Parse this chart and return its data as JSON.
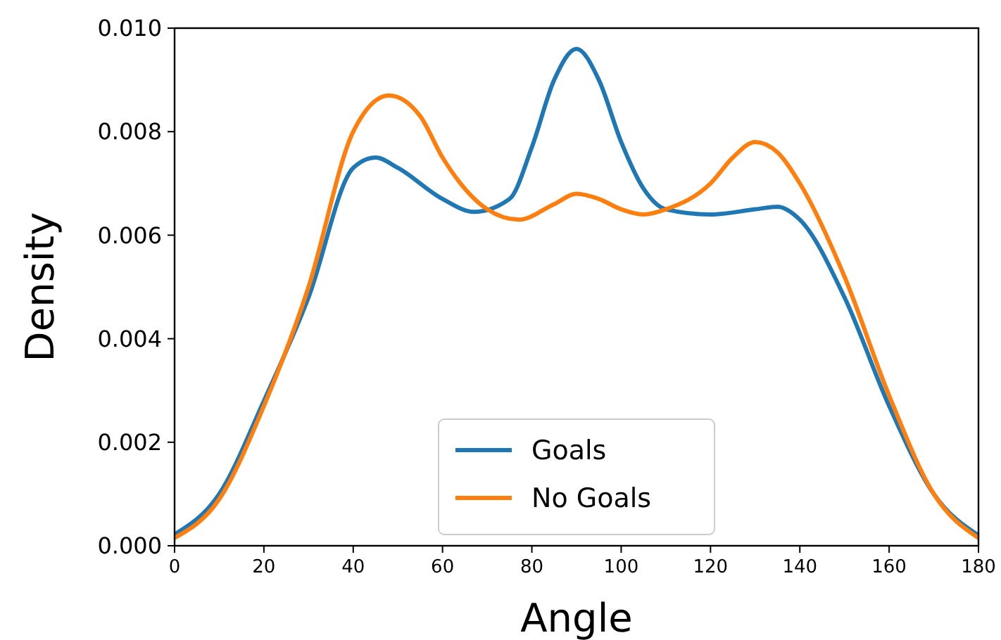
{
  "chart_data": {
    "type": "line",
    "xlabel": "Angle",
    "ylabel": "Density",
    "xlim": [
      0,
      180
    ],
    "ylim": [
      0,
      0.01
    ],
    "xticks": [
      0,
      20,
      40,
      60,
      80,
      100,
      120,
      140,
      160,
      180
    ],
    "yticks": [
      {
        "value": 0,
        "label": "0.000"
      },
      {
        "value": 0.002,
        "label": "0.002"
      },
      {
        "value": 0.004,
        "label": "0.004"
      },
      {
        "value": 0.006,
        "label": "0.006"
      },
      {
        "value": 0.008,
        "label": "0.008"
      },
      {
        "value": 0.01,
        "label": "0.010"
      }
    ],
    "legend": "bottom",
    "grid": false,
    "marker": "none",
    "line_style": "solid",
    "series": [
      {
        "name": "Goals",
        "color": "#1f77b4",
        "x": [
          0,
          10,
          20,
          30,
          40,
          45,
          50,
          60,
          67,
          75,
          80,
          85,
          90,
          95,
          100,
          105,
          110,
          120,
          130,
          135,
          140,
          150,
          160,
          170,
          180
        ],
        "values": [
          0.00022,
          0.001,
          0.0028,
          0.0048,
          0.0073,
          0.0075,
          0.0073,
          0.0067,
          0.00645,
          0.0067,
          0.0077,
          0.009,
          0.0096,
          0.009,
          0.0078,
          0.0069,
          0.0065,
          0.0064,
          0.0065,
          0.00655,
          0.0063,
          0.0048,
          0.0027,
          0.001,
          0.0002
        ]
      },
      {
        "name": "No Goals",
        "color": "#ff7f0e",
        "x": [
          0,
          10,
          20,
          30,
          40,
          48,
          55,
          60,
          70,
          77,
          85,
          90,
          95,
          100,
          105,
          110,
          120,
          125,
          130,
          135,
          140,
          150,
          160,
          170,
          180
        ],
        "values": [
          0.00015,
          0.0009,
          0.0027,
          0.005,
          0.008,
          0.0087,
          0.0083,
          0.0075,
          0.0065,
          0.0063,
          0.0066,
          0.0068,
          0.0067,
          0.0065,
          0.0064,
          0.0065,
          0.007,
          0.0075,
          0.0078,
          0.0076,
          0.007,
          0.0052,
          0.0029,
          0.001,
          0.00015
        ]
      }
    ]
  }
}
